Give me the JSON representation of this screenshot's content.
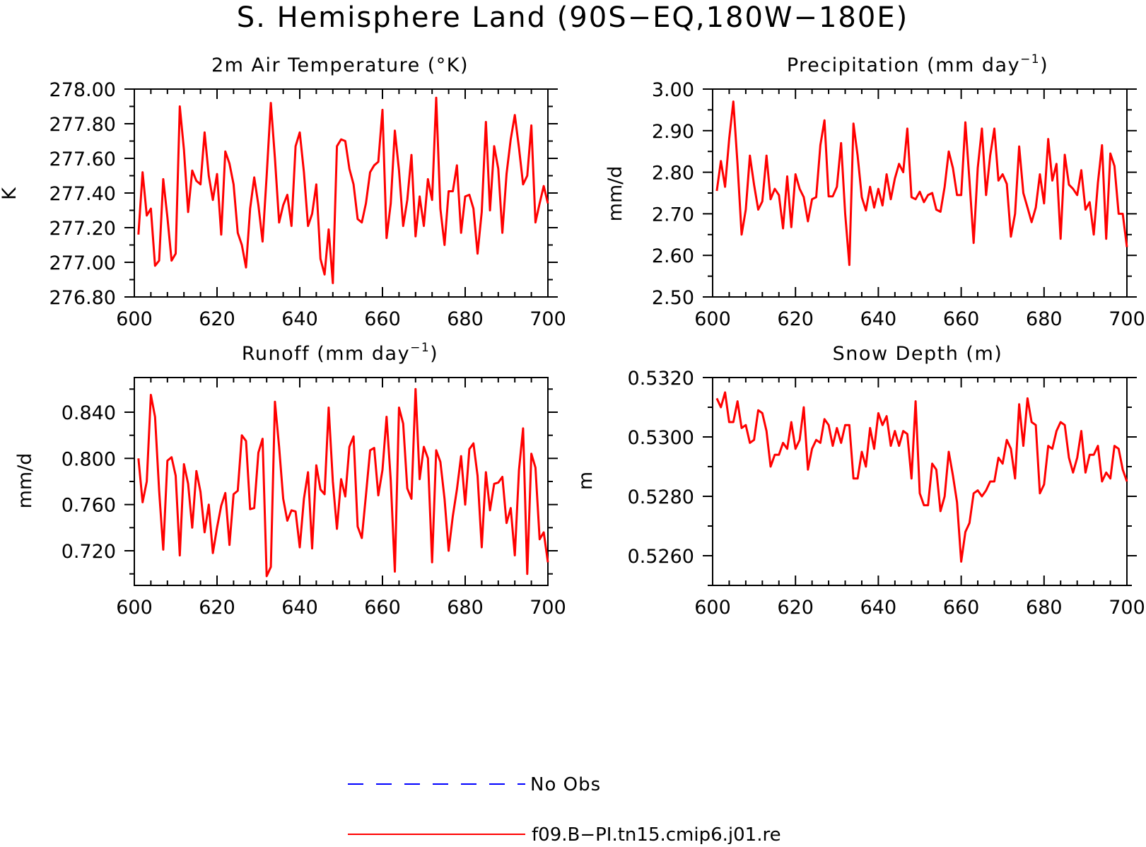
{
  "title": "S. Hemisphere Land (90S−EQ,180W−180E)",
  "chart_data": [
    {
      "type": "line",
      "title": "2m Air Temperature (°K)",
      "ylabel": "K",
      "xlim": [
        600,
        700
      ],
      "ylim": [
        276.8,
        278.0
      ],
      "xticks": [
        600,
        620,
        640,
        660,
        680,
        700
      ],
      "xtick_labels": [
        "600",
        "620",
        "640",
        "660",
        "680",
        "700"
      ],
      "yticks": [
        276.8,
        277.0,
        277.2,
        277.4,
        277.6,
        277.8,
        278.0
      ],
      "ytick_labels": [
        "276.80",
        "277.00",
        "277.20",
        "277.40",
        "277.60",
        "277.80",
        "278.00"
      ],
      "series": [
        {
          "name": "f09.B−PI.tn15.cmip6.j01.re",
          "color": "#ff0000",
          "x_start": 601,
          "values": [
            277.16,
            277.52,
            277.27,
            277.31,
            276.98,
            277.01,
            277.48,
            277.26,
            277.01,
            277.05,
            277.9,
            277.65,
            277.29,
            277.53,
            277.47,
            277.45,
            277.75,
            277.5,
            277.36,
            277.51,
            277.16,
            277.64,
            277.57,
            277.45,
            277.17,
            277.1,
            276.97,
            277.31,
            277.49,
            277.33,
            277.12,
            277.5,
            277.92,
            277.6,
            277.23,
            277.33,
            277.39,
            277.21,
            277.67,
            277.75,
            277.52,
            277.21,
            277.28,
            277.45,
            277.02,
            276.93,
            277.19,
            276.88,
            277.67,
            277.71,
            277.7,
            277.54,
            277.45,
            277.25,
            277.23,
            277.34,
            277.52,
            277.56,
            277.58,
            277.88,
            277.14,
            277.34,
            277.76,
            277.53,
            277.21,
            277.36,
            277.62,
            277.15,
            277.38,
            277.21,
            277.48,
            277.36,
            277.95,
            277.31,
            277.1,
            277.41,
            277.41,
            277.56,
            277.17,
            277.38,
            277.39,
            277.31,
            277.05,
            277.29,
            277.81,
            277.3,
            277.67,
            277.54,
            277.17,
            277.51,
            277.71,
            277.85,
            277.66,
            277.45,
            277.5,
            277.79,
            277.23,
            277.34,
            277.44,
            277.34
          ]
        }
      ]
    },
    {
      "type": "line",
      "title": "Precipitation (mm day",
      "title_sup": "−1",
      "title_end": ")",
      "ylabel": "mm/d",
      "xlim": [
        600,
        700
      ],
      "ylim": [
        2.5,
        3.0
      ],
      "xticks": [
        600,
        620,
        640,
        660,
        680,
        700
      ],
      "xtick_labels": [
        "600",
        "620",
        "640",
        "660",
        "680",
        "700"
      ],
      "yticks": [
        2.5,
        2.6,
        2.7,
        2.8,
        2.9,
        3.0
      ],
      "ytick_labels": [
        "2.50",
        "2.60",
        "2.70",
        "2.80",
        "2.90",
        "3.00"
      ],
      "series": [
        {
          "name": "f09.B−PI.tn15.cmip6.j01.re",
          "color": "#ff0000",
          "x_start": 601,
          "values": [
            2.755,
            2.827,
            2.765,
            2.88,
            2.97,
            2.82,
            2.65,
            2.71,
            2.84,
            2.77,
            2.71,
            2.73,
            2.84,
            2.735,
            2.76,
            2.745,
            2.665,
            2.79,
            2.668,
            2.795,
            2.76,
            2.74,
            2.682,
            2.735,
            2.74,
            2.865,
            2.925,
            2.742,
            2.742,
            2.765,
            2.87,
            2.7,
            2.577,
            2.917,
            2.84,
            2.74,
            2.708,
            2.765,
            2.715,
            2.76,
            2.72,
            2.795,
            2.735,
            2.785,
            2.82,
            2.8,
            2.905,
            2.74,
            2.735,
            2.753,
            2.728,
            2.745,
            2.75,
            2.71,
            2.705,
            2.765,
            2.85,
            2.81,
            2.745,
            2.745,
            2.92,
            2.78,
            2.63,
            2.81,
            2.905,
            2.745,
            2.84,
            2.905,
            2.78,
            2.795,
            2.772,
            2.645,
            2.7,
            2.862,
            2.75,
            2.715,
            2.68,
            2.715,
            2.795,
            2.725,
            2.88,
            2.78,
            2.82,
            2.64,
            2.842,
            2.77,
            2.76,
            2.745,
            2.805,
            2.71,
            2.728,
            2.65,
            2.775,
            2.865,
            2.64,
            2.845,
            2.815,
            2.7,
            2.7,
            2.62
          ]
        }
      ]
    },
    {
      "type": "line",
      "title": "Runoff (mm day",
      "title_sup": "−1",
      "title_end": ")",
      "ylabel": "mm/d",
      "xlim": [
        600,
        700
      ],
      "ylim": [
        0.69,
        0.87
      ],
      "xticks": [
        600,
        620,
        640,
        660,
        680,
        700
      ],
      "xtick_labels": [
        "600",
        "620",
        "640",
        "660",
        "680",
        "700"
      ],
      "yticks": [
        0.72,
        0.76,
        0.8,
        0.84
      ],
      "ytick_labels": [
        "0.720",
        "0.760",
        "0.800",
        "0.840"
      ],
      "series": [
        {
          "name": "f09.B−PI.tn15.cmip6.j01.re",
          "color": "#ff0000",
          "x_start": 601,
          "values": [
            0.8,
            0.762,
            0.78,
            0.855,
            0.836,
            0.772,
            0.721,
            0.798,
            0.801,
            0.785,
            0.716,
            0.795,
            0.778,
            0.74,
            0.789,
            0.771,
            0.736,
            0.76,
            0.718,
            0.74,
            0.759,
            0.77,
            0.725,
            0.769,
            0.772,
            0.82,
            0.815,
            0.756,
            0.757,
            0.805,
            0.817,
            0.698,
            0.706,
            0.849,
            0.81,
            0.765,
            0.746,
            0.755,
            0.754,
            0.723,
            0.765,
            0.788,
            0.722,
            0.794,
            0.773,
            0.769,
            0.844,
            0.78,
            0.739,
            0.782,
            0.767,
            0.81,
            0.819,
            0.741,
            0.731,
            0.768,
            0.807,
            0.809,
            0.768,
            0.79,
            0.836,
            0.781,
            0.702,
            0.844,
            0.83,
            0.774,
            0.765,
            0.86,
            0.782,
            0.81,
            0.8,
            0.71,
            0.807,
            0.797,
            0.765,
            0.72,
            0.75,
            0.773,
            0.802,
            0.76,
            0.808,
            0.813,
            0.785,
            0.723,
            0.788,
            0.755,
            0.778,
            0.779,
            0.784,
            0.744,
            0.757,
            0.716,
            0.79,
            0.826,
            0.7,
            0.804,
            0.792,
            0.73,
            0.736,
            0.71
          ]
        }
      ]
    },
    {
      "type": "line",
      "title": "Snow Depth (m)",
      "ylabel": "m",
      "xlim": [
        600,
        700
      ],
      "ylim": [
        0.525,
        0.532
      ],
      "xticks": [
        600,
        620,
        640,
        660,
        680,
        700
      ],
      "xtick_labels": [
        "600",
        "620",
        "640",
        "660",
        "680",
        "700"
      ],
      "yticks": [
        0.526,
        0.528,
        0.53,
        0.532
      ],
      "ytick_labels": [
        "0.5260",
        "0.5280",
        "0.5300",
        "0.5320"
      ],
      "series": [
        {
          "name": "f09.B−PI.tn15.cmip6.j01.re",
          "color": "#ff0000",
          "x_start": 601,
          "values": [
            0.5313,
            0.531,
            0.5315,
            0.5305,
            0.5305,
            0.5312,
            0.5303,
            0.5304,
            0.5298,
            0.5299,
            0.5309,
            0.5308,
            0.5302,
            0.529,
            0.5294,
            0.5294,
            0.5298,
            0.5296,
            0.5305,
            0.5296,
            0.5299,
            0.531,
            0.5289,
            0.5296,
            0.5299,
            0.5298,
            0.5306,
            0.5304,
            0.5297,
            0.5303,
            0.5298,
            0.5304,
            0.5304,
            0.5286,
            0.5286,
            0.5295,
            0.529,
            0.5303,
            0.5296,
            0.5308,
            0.5304,
            0.5307,
            0.5297,
            0.5302,
            0.5297,
            0.5302,
            0.5301,
            0.5286,
            0.5312,
            0.5281,
            0.5277,
            0.5277,
            0.5291,
            0.5289,
            0.5275,
            0.528,
            0.5295,
            0.5287,
            0.5278,
            0.5258,
            0.5268,
            0.5271,
            0.5281,
            0.5282,
            0.528,
            0.5282,
            0.5285,
            0.5285,
            0.5293,
            0.5291,
            0.5299,
            0.5296,
            0.5286,
            0.5311,
            0.5297,
            0.5313,
            0.5305,
            0.5304,
            0.5281,
            0.5284,
            0.5297,
            0.5296,
            0.5302,
            0.5305,
            0.5304,
            0.5293,
            0.5288,
            0.5293,
            0.5302,
            0.5288,
            0.5294,
            0.5294,
            0.5297,
            0.5285,
            0.5288,
            0.5286,
            0.5297,
            0.5296,
            0.5289,
            0.5285
          ]
        }
      ]
    }
  ],
  "legend": {
    "items": [
      {
        "label": "No Obs",
        "color": "#0000ff",
        "style": "dashed"
      },
      {
        "label": "f09.B−PI.tn15.cmip6.j01.re",
        "color": "#ff0000",
        "style": "solid"
      }
    ]
  }
}
